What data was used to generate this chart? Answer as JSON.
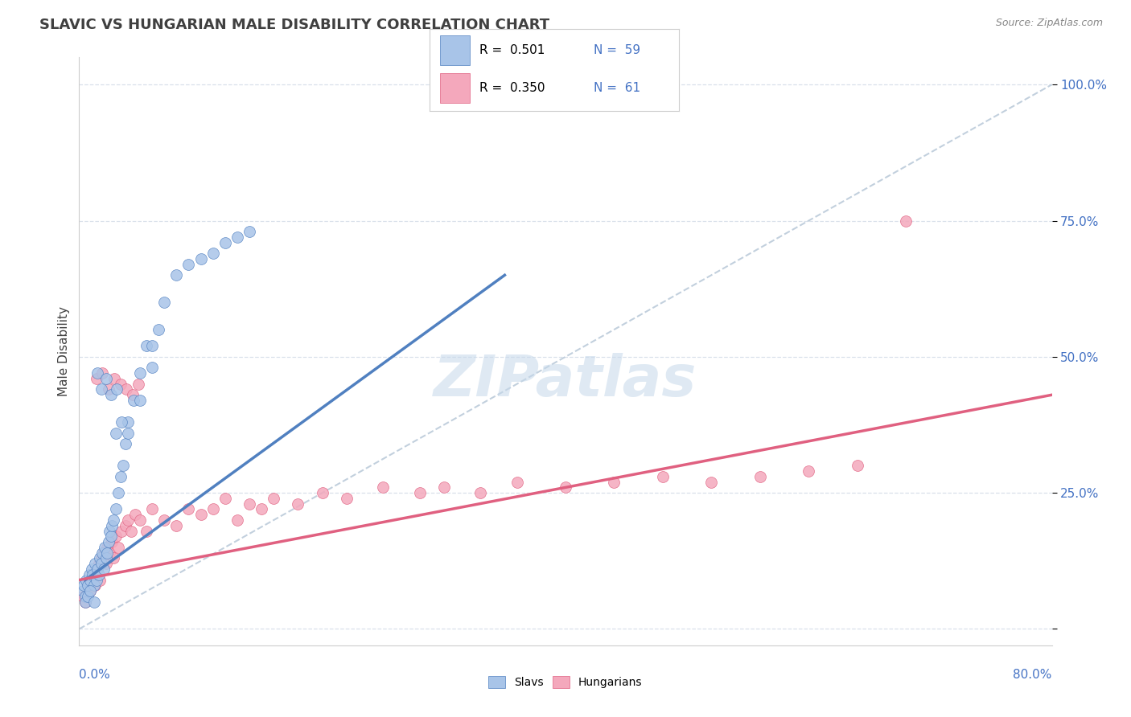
{
  "title": "SLAVIC VS HUNGARIAN MALE DISABILITY CORRELATION CHART",
  "source": "Source: ZipAtlas.com",
  "ylabel": "Male Disability",
  "xlim": [
    0.0,
    80.0
  ],
  "ylim": [
    -3.0,
    105.0
  ],
  "ytick_values": [
    0,
    25,
    50,
    75,
    100
  ],
  "ytick_labels": [
    "",
    "25.0%",
    "50.0%",
    "75.0%",
    "100.0%"
  ],
  "legend_r_slavs": "0.501",
  "legend_n_slavs": "59",
  "legend_r_hung": "0.350",
  "legend_n_hung": "61",
  "slavs_color": "#a8c4e8",
  "hung_color": "#f4a8bc",
  "slavs_line_color": "#5080c0",
  "hung_line_color": "#e06080",
  "ref_line_color": "#b8c8d8",
  "watermark_color": "#c5d8ea",
  "background_color": "#ffffff",
  "grid_color": "#d5dde8",
  "slavs_x": [
    0.3,
    0.4,
    0.5,
    0.6,
    0.7,
    0.8,
    0.9,
    1.0,
    1.1,
    1.2,
    1.3,
    1.4,
    1.5,
    1.6,
    1.7,
    1.8,
    1.9,
    2.0,
    2.1,
    2.2,
    2.3,
    2.4,
    2.5,
    2.6,
    2.7,
    2.8,
    3.0,
    3.2,
    3.4,
    3.6,
    3.8,
    4.0,
    4.5,
    5.0,
    5.5,
    6.0,
    6.5,
    7.0,
    8.0,
    9.0,
    10.0,
    11.0,
    12.0,
    13.0,
    14.0,
    3.0,
    3.5,
    4.0,
    5.0,
    6.0,
    1.5,
    1.8,
    2.2,
    2.6,
    3.1,
    0.5,
    0.7,
    0.9,
    1.2
  ],
  "slavs_y": [
    7.0,
    8.0,
    6.0,
    9.0,
    8.0,
    10.0,
    9.0,
    11.0,
    10.0,
    8.0,
    12.0,
    9.0,
    11.0,
    10.0,
    13.0,
    12.0,
    14.0,
    11.0,
    15.0,
    13.0,
    14.0,
    16.0,
    18.0,
    17.0,
    19.0,
    20.0,
    22.0,
    25.0,
    28.0,
    30.0,
    34.0,
    38.0,
    42.0,
    47.0,
    52.0,
    52.0,
    55.0,
    60.0,
    65.0,
    67.0,
    68.0,
    69.0,
    71.0,
    72.0,
    73.0,
    36.0,
    38.0,
    36.0,
    42.0,
    48.0,
    47.0,
    44.0,
    46.0,
    43.0,
    44.0,
    5.0,
    6.0,
    7.0,
    5.0
  ],
  "hung_x": [
    0.3,
    0.5,
    0.7,
    0.9,
    1.0,
    1.2,
    1.3,
    1.5,
    1.6,
    1.7,
    1.8,
    2.0,
    2.2,
    2.3,
    2.5,
    2.7,
    2.8,
    3.0,
    3.2,
    3.5,
    3.8,
    4.0,
    4.3,
    4.6,
    5.0,
    5.5,
    6.0,
    7.0,
    8.0,
    9.0,
    10.0,
    11.0,
    12.0,
    13.0,
    14.0,
    15.0,
    16.0,
    18.0,
    20.0,
    22.0,
    25.0,
    28.0,
    30.0,
    33.0,
    36.0,
    40.0,
    44.0,
    48.0,
    52.0,
    56.0,
    60.0,
    64.0,
    68.0,
    1.4,
    1.9,
    2.4,
    2.9,
    3.4,
    3.9,
    4.4,
    4.9
  ],
  "hung_y": [
    6.0,
    5.0,
    8.0,
    7.0,
    9.0,
    10.0,
    8.0,
    11.0,
    12.0,
    9.0,
    13.0,
    14.0,
    12.0,
    15.0,
    14.0,
    16.0,
    13.0,
    17.0,
    15.0,
    18.0,
    19.0,
    20.0,
    18.0,
    21.0,
    20.0,
    18.0,
    22.0,
    20.0,
    19.0,
    22.0,
    21.0,
    22.0,
    24.0,
    20.0,
    23.0,
    22.0,
    24.0,
    23.0,
    25.0,
    24.0,
    26.0,
    25.0,
    26.0,
    25.0,
    27.0,
    26.0,
    27.0,
    28.0,
    27.0,
    28.0,
    29.0,
    30.0,
    75.0,
    46.0,
    47.0,
    44.0,
    46.0,
    45.0,
    44.0,
    43.0,
    45.0
  ],
  "slavs_trend_x": [
    0.5,
    35.0
  ],
  "slavs_trend_y": [
    9.0,
    65.0
  ],
  "hung_trend_x": [
    0.0,
    80.0
  ],
  "hung_trend_y": [
    9.0,
    43.0
  ],
  "ref_line_x": [
    0.0,
    80.0
  ],
  "ref_line_y": [
    0.0,
    100.0
  ]
}
